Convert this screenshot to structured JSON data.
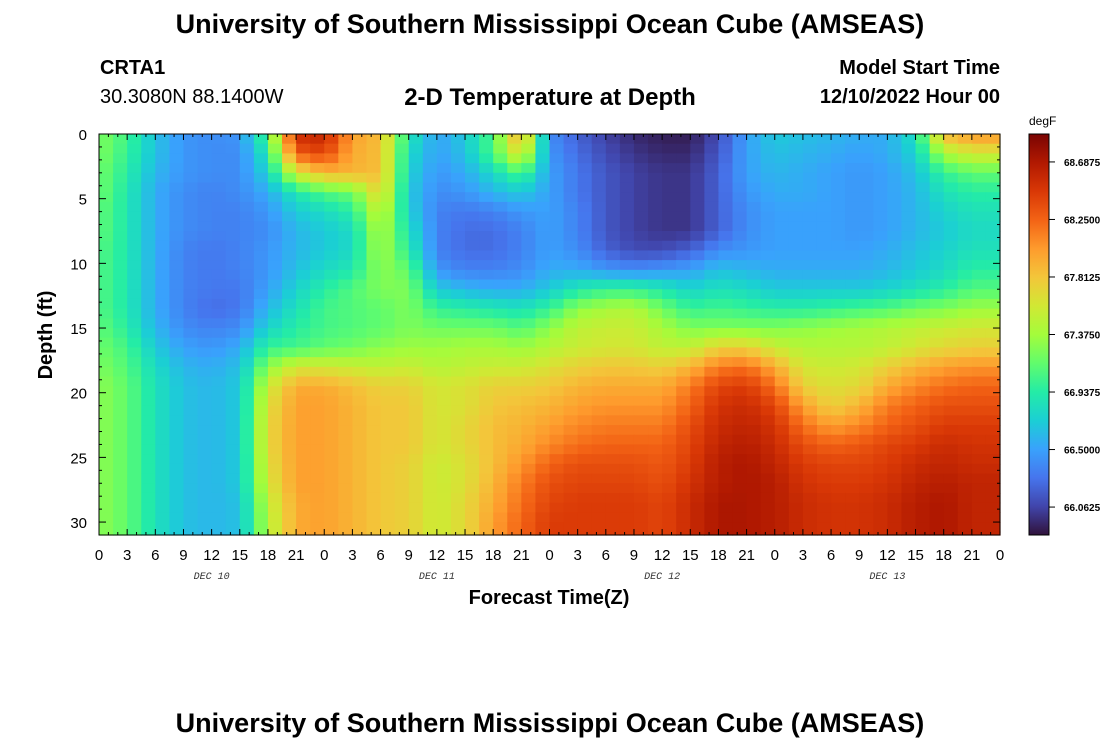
{
  "header": {
    "main_title": "University of Southern Mississippi Ocean Cube (AMSEAS)",
    "station_name": "CRTA1",
    "station_coords": "30.3080N  88.1400W",
    "plot_title": "2-D Temperature at Depth",
    "model_start_label": "Model Start Time",
    "model_start_value": "12/10/2022 Hour 00",
    "bottom_title": "University of Southern Mississippi Ocean Cube (AMSEAS)"
  },
  "chart_data": {
    "type": "heatmap",
    "title": "2-D Temperature at Depth",
    "xlabel": "Forecast Time(Z)",
    "ylabel": "Depth (ft)",
    "x_tick_labels": [
      "0",
      "3",
      "6",
      "9",
      "12",
      "15",
      "18",
      "21",
      "0",
      "3",
      "6",
      "9",
      "12",
      "15",
      "18",
      "21",
      "0",
      "3",
      "6",
      "9",
      "12",
      "15",
      "18",
      "21",
      "0",
      "3",
      "6",
      "9",
      "12",
      "15",
      "18",
      "21",
      "0"
    ],
    "day_labels": [
      "DEC 10",
      "DEC 11",
      "DEC 12",
      "DEC 13"
    ],
    "y_ticks": [
      0,
      5,
      10,
      15,
      20,
      25,
      30
    ],
    "y_tick_labels": [
      "0",
      "5",
      "10",
      "15",
      "20",
      "25",
      "30"
    ],
    "xlim": [
      0,
      96
    ],
    "ylim": [
      0,
      31
    ],
    "colorbar": {
      "unit": "degF",
      "min": 65.85,
      "max": 68.9,
      "tick_values": [
        68.6875,
        68.25,
        67.8125,
        67.375,
        66.9375,
        66.5,
        66.0625
      ],
      "tick_labels": [
        "68.6875",
        "68.2500",
        "67.8125",
        "67.3750",
        "66.9375",
        "66.5000",
        "66.0625"
      ],
      "colors": [
        "#30123b",
        "#4145ab",
        "#4675ed",
        "#39a2fc",
        "#1bcfd4",
        "#24eca6",
        "#61fc6c",
        "#a4fc3b",
        "#d1e834",
        "#f3c63a",
        "#fe9b2d",
        "#f36315",
        "#d93806",
        "#b11901",
        "#7a0403"
      ]
    },
    "depth_levels": [
      0,
      1.5,
      3,
      4.5,
      6,
      7.5,
      9,
      10.5,
      12,
      13.5,
      15,
      16.5,
      18,
      19.5,
      21,
      22.5,
      24,
      25.5,
      27,
      28.5,
      30,
      31
    ],
    "time_hours": [
      0,
      3,
      6,
      9,
      12,
      15,
      18,
      21,
      24,
      27,
      30,
      33,
      36,
      39,
      42,
      45,
      48,
      51,
      54,
      57,
      60,
      63,
      66,
      69,
      72,
      75,
      78,
      81,
      84,
      87,
      90,
      93,
      96
    ],
    "temperature_degF": [
      [
        67.25,
        67.05,
        66.65,
        66.45,
        66.4,
        66.45,
        67.1,
        68.55,
        68.6,
        68.0,
        67.85,
        66.9,
        66.5,
        66.7,
        67.1,
        68.0,
        66.4,
        66.2,
        66.05,
        65.95,
        65.9,
        65.9,
        66.1,
        66.5,
        66.7,
        66.65,
        66.6,
        66.55,
        66.55,
        66.85,
        67.9,
        68.05,
        68.05
      ],
      [
        67.25,
        67.0,
        66.65,
        66.45,
        66.4,
        66.4,
        66.9,
        68.3,
        68.4,
        67.95,
        67.85,
        66.8,
        66.5,
        66.65,
        67.1,
        67.7,
        66.45,
        66.25,
        66.1,
        66.0,
        65.95,
        65.95,
        66.15,
        66.5,
        66.65,
        66.6,
        66.55,
        66.5,
        66.55,
        66.75,
        67.4,
        67.6,
        67.6
      ],
      [
        67.2,
        66.95,
        66.6,
        66.45,
        66.4,
        66.4,
        66.75,
        67.6,
        67.9,
        67.9,
        67.85,
        66.75,
        66.45,
        66.55,
        66.8,
        67.1,
        66.5,
        66.3,
        66.15,
        66.05,
        66.0,
        66.0,
        66.2,
        66.5,
        66.6,
        66.55,
        66.5,
        66.45,
        66.5,
        66.65,
        67.0,
        67.15,
        67.15
      ],
      [
        67.2,
        66.9,
        66.55,
        66.4,
        66.35,
        66.4,
        66.55,
        66.9,
        67.1,
        67.2,
        67.75,
        66.7,
        66.4,
        66.45,
        66.6,
        66.7,
        66.5,
        66.3,
        66.15,
        66.05,
        66.0,
        66.0,
        66.2,
        66.45,
        66.55,
        66.55,
        66.5,
        66.45,
        66.5,
        66.6,
        66.85,
        66.95,
        66.95
      ],
      [
        67.15,
        66.9,
        66.55,
        66.4,
        66.35,
        66.35,
        66.45,
        66.7,
        66.8,
        66.95,
        67.55,
        66.75,
        66.35,
        66.3,
        66.35,
        66.45,
        66.5,
        66.35,
        66.15,
        66.05,
        66.0,
        66.0,
        66.2,
        66.4,
        66.5,
        66.5,
        66.5,
        66.45,
        66.5,
        66.6,
        66.75,
        66.85,
        66.85
      ],
      [
        67.15,
        66.9,
        66.55,
        66.4,
        66.35,
        66.35,
        66.4,
        66.6,
        66.7,
        66.8,
        67.45,
        66.85,
        66.35,
        66.25,
        66.25,
        66.35,
        66.5,
        66.35,
        66.15,
        66.05,
        66.0,
        66.0,
        66.2,
        66.4,
        66.5,
        66.5,
        66.5,
        66.45,
        66.5,
        66.6,
        66.7,
        66.8,
        66.8
      ],
      [
        67.1,
        66.9,
        66.55,
        66.35,
        66.3,
        66.35,
        66.45,
        66.6,
        66.7,
        66.8,
        67.4,
        66.95,
        66.35,
        66.25,
        66.25,
        66.35,
        66.5,
        66.4,
        66.2,
        66.1,
        66.1,
        66.2,
        66.4,
        66.45,
        66.5,
        66.5,
        66.5,
        66.5,
        66.55,
        66.65,
        66.75,
        66.85,
        66.85
      ],
      [
        67.1,
        66.9,
        66.55,
        66.35,
        66.3,
        66.35,
        66.45,
        66.65,
        66.8,
        66.9,
        67.3,
        67.15,
        66.45,
        66.35,
        66.35,
        66.4,
        66.55,
        66.55,
        66.45,
        66.4,
        66.45,
        66.5,
        66.65,
        66.6,
        66.55,
        66.55,
        66.55,
        66.55,
        66.6,
        66.7,
        66.8,
        66.95,
        66.95
      ],
      [
        67.1,
        66.9,
        66.55,
        66.35,
        66.3,
        66.3,
        66.5,
        66.75,
        66.95,
        67.1,
        67.25,
        67.25,
        66.7,
        66.6,
        66.55,
        66.55,
        66.7,
        66.9,
        67.0,
        67.0,
        66.9,
        66.75,
        66.85,
        66.8,
        66.7,
        66.7,
        66.7,
        66.7,
        66.75,
        66.85,
        66.95,
        67.1,
        67.1
      ],
      [
        67.1,
        66.9,
        66.55,
        66.35,
        66.25,
        66.3,
        66.6,
        66.85,
        67.05,
        67.1,
        67.15,
        67.25,
        67.0,
        66.95,
        66.9,
        66.85,
        67.0,
        67.3,
        67.4,
        67.45,
        67.2,
        67.0,
        67.05,
        67.0,
        66.95,
        66.95,
        67.0,
        67.05,
        67.1,
        67.2,
        67.25,
        67.35,
        67.35
      ],
      [
        67.15,
        66.95,
        66.6,
        66.4,
        66.35,
        66.4,
        66.75,
        66.95,
        67.05,
        67.1,
        67.15,
        67.25,
        67.2,
        67.2,
        67.2,
        67.1,
        67.3,
        67.5,
        67.55,
        67.55,
        67.4,
        67.25,
        67.25,
        67.25,
        67.25,
        67.3,
        67.35,
        67.4,
        67.45,
        67.5,
        67.55,
        67.6,
        67.6
      ],
      [
        67.2,
        67.05,
        66.7,
        66.5,
        66.45,
        66.55,
        67.0,
        67.05,
        67.15,
        67.2,
        67.3,
        67.35,
        67.35,
        67.4,
        67.4,
        67.35,
        67.45,
        67.55,
        67.6,
        67.6,
        67.5,
        67.5,
        67.75,
        67.75,
        67.55,
        67.45,
        67.45,
        67.45,
        67.5,
        67.6,
        67.7,
        67.75,
        67.75
      ],
      [
        67.25,
        67.1,
        66.8,
        66.6,
        66.55,
        66.65,
        67.3,
        67.6,
        67.6,
        67.55,
        67.5,
        67.55,
        67.45,
        67.5,
        67.55,
        67.55,
        67.65,
        67.75,
        67.8,
        67.8,
        67.75,
        67.9,
        68.15,
        68.2,
        67.95,
        67.6,
        67.55,
        67.6,
        67.75,
        67.9,
        68.0,
        68.05,
        68.05
      ],
      [
        67.3,
        67.15,
        66.85,
        66.65,
        66.6,
        66.7,
        67.55,
        67.95,
        67.95,
        67.85,
        67.75,
        67.75,
        67.6,
        67.65,
        67.75,
        67.75,
        67.8,
        67.9,
        67.95,
        67.95,
        67.95,
        68.15,
        68.4,
        68.45,
        68.2,
        67.75,
        67.65,
        67.7,
        67.95,
        68.1,
        68.2,
        68.25,
        68.25
      ],
      [
        67.3,
        67.15,
        66.85,
        66.65,
        66.6,
        66.7,
        67.65,
        68.0,
        68.0,
        67.9,
        67.8,
        67.8,
        67.6,
        67.65,
        67.8,
        67.85,
        67.9,
        68.0,
        68.05,
        68.05,
        68.05,
        68.25,
        68.5,
        68.55,
        68.4,
        68.0,
        67.75,
        67.9,
        68.15,
        68.25,
        68.35,
        68.35,
        68.35
      ],
      [
        67.3,
        67.15,
        66.85,
        66.65,
        66.6,
        66.7,
        67.7,
        68.0,
        68.0,
        67.9,
        67.8,
        67.8,
        67.6,
        67.7,
        67.85,
        67.9,
        68.0,
        68.1,
        68.15,
        68.15,
        68.15,
        68.35,
        68.55,
        68.6,
        68.5,
        68.2,
        68.0,
        68.1,
        68.25,
        68.35,
        68.45,
        68.45,
        68.45
      ],
      [
        67.3,
        67.15,
        66.85,
        66.65,
        66.6,
        66.7,
        67.7,
        68.0,
        68.0,
        67.9,
        67.8,
        67.8,
        67.6,
        67.7,
        67.85,
        67.95,
        68.1,
        68.2,
        68.25,
        68.25,
        68.25,
        68.4,
        68.6,
        68.65,
        68.55,
        68.35,
        68.25,
        68.3,
        68.4,
        68.45,
        68.55,
        68.5,
        68.5
      ],
      [
        67.3,
        67.15,
        66.85,
        66.65,
        66.6,
        66.7,
        67.65,
        68.0,
        68.0,
        67.9,
        67.8,
        67.75,
        67.55,
        67.65,
        67.85,
        68.05,
        68.25,
        68.35,
        68.35,
        68.35,
        68.3,
        68.45,
        68.65,
        68.7,
        68.6,
        68.45,
        68.4,
        68.4,
        68.45,
        68.55,
        68.6,
        68.55,
        68.55
      ],
      [
        67.3,
        67.15,
        66.85,
        66.65,
        66.6,
        66.7,
        67.6,
        68.0,
        68.0,
        67.9,
        67.8,
        67.75,
        67.55,
        67.65,
        67.9,
        68.15,
        68.35,
        68.4,
        68.4,
        68.4,
        68.35,
        68.5,
        68.65,
        68.7,
        68.65,
        68.5,
        68.45,
        68.45,
        68.5,
        68.6,
        68.65,
        68.6,
        68.6
      ],
      [
        67.3,
        67.15,
        66.85,
        66.65,
        66.6,
        66.65,
        67.5,
        67.95,
        68.0,
        67.9,
        67.8,
        67.75,
        67.55,
        67.7,
        67.95,
        68.2,
        68.4,
        68.45,
        68.45,
        68.45,
        68.4,
        68.55,
        68.7,
        68.7,
        68.65,
        68.55,
        68.5,
        68.5,
        68.55,
        68.65,
        68.7,
        68.6,
        68.6
      ],
      [
        67.3,
        67.15,
        66.85,
        66.65,
        66.6,
        66.65,
        67.45,
        67.95,
        68.0,
        67.9,
        67.8,
        67.75,
        67.55,
        67.7,
        68.0,
        68.25,
        68.45,
        68.45,
        68.45,
        68.45,
        68.4,
        68.55,
        68.7,
        68.7,
        68.65,
        68.55,
        68.5,
        68.5,
        68.55,
        68.65,
        68.7,
        68.6,
        68.6
      ],
      [
        67.3,
        67.15,
        66.85,
        66.65,
        66.6,
        66.65,
        67.45,
        67.95,
        68.0,
        67.9,
        67.8,
        67.75,
        67.55,
        67.7,
        68.0,
        68.25,
        68.45,
        68.45,
        68.45,
        68.45,
        68.4,
        68.55,
        68.7,
        68.7,
        68.65,
        68.55,
        68.5,
        68.5,
        68.55,
        68.65,
        68.7,
        68.6,
        68.6
      ]
    ]
  }
}
